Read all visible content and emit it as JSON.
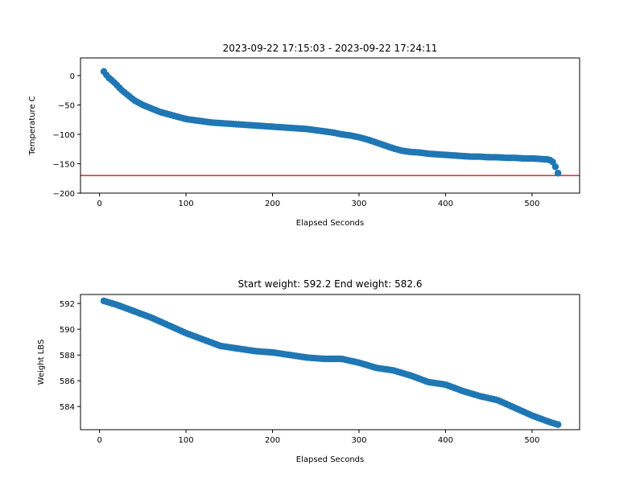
{
  "chart_data": [
    {
      "type": "scatter",
      "title": "2023-09-22 17:15:03 - 2023-09-22 17:24:11",
      "xlabel": "Elapsed Seconds",
      "ylabel": "Temperature C",
      "xlim": [
        -22,
        555
      ],
      "ylim": [
        -200,
        30
      ],
      "xticks": [
        0,
        100,
        200,
        300,
        400,
        500
      ],
      "yticks": [
        0,
        -50,
        -100,
        -150,
        -200
      ],
      "grid": false,
      "point_color": "#1f77b4",
      "reference_line": {
        "y": -170,
        "color": "#d62728"
      },
      "keyframes": [
        [
          5,
          7
        ],
        [
          10,
          -3
        ],
        [
          15,
          -9
        ],
        [
          20,
          -16
        ],
        [
          25,
          -24
        ],
        [
          30,
          -30
        ],
        [
          35,
          -36
        ],
        [
          40,
          -42
        ],
        [
          50,
          -50
        ],
        [
          60,
          -56
        ],
        [
          70,
          -62
        ],
        [
          80,
          -66
        ],
        [
          90,
          -70
        ],
        [
          100,
          -74
        ],
        [
          110,
          -76
        ],
        [
          120,
          -78
        ],
        [
          130,
          -80
        ],
        [
          140,
          -81
        ],
        [
          150,
          -82
        ],
        [
          160,
          -83
        ],
        [
          170,
          -84
        ],
        [
          180,
          -85
        ],
        [
          190,
          -86
        ],
        [
          200,
          -87
        ],
        [
          210,
          -88
        ],
        [
          220,
          -89
        ],
        [
          230,
          -90
        ],
        [
          240,
          -91
        ],
        [
          250,
          -93
        ],
        [
          260,
          -95
        ],
        [
          270,
          -97
        ],
        [
          280,
          -100
        ],
        [
          290,
          -102
        ],
        [
          300,
          -105
        ],
        [
          310,
          -109
        ],
        [
          320,
          -114
        ],
        [
          330,
          -119
        ],
        [
          340,
          -124
        ],
        [
          350,
          -128
        ],
        [
          360,
          -130
        ],
        [
          370,
          -131
        ],
        [
          380,
          -133
        ],
        [
          390,
          -134
        ],
        [
          400,
          -135
        ],
        [
          410,
          -136
        ],
        [
          420,
          -137
        ],
        [
          430,
          -138
        ],
        [
          440,
          -138
        ],
        [
          450,
          -139
        ],
        [
          460,
          -139
        ],
        [
          470,
          -140
        ],
        [
          480,
          -140
        ],
        [
          490,
          -141
        ],
        [
          500,
          -141
        ],
        [
          510,
          -142
        ],
        [
          520,
          -143
        ],
        [
          525,
          -148
        ],
        [
          530,
          -166
        ]
      ]
    },
    {
      "type": "scatter",
      "title": "Start weight: 592.2 End weight: 582.6",
      "xlabel": "Elapsed Seconds",
      "ylabel": "Weight LBS",
      "xlim": [
        -22,
        555
      ],
      "ylim": [
        582.2,
        592.7
      ],
      "xticks": [
        0,
        100,
        200,
        300,
        400,
        500
      ],
      "yticks": [
        584,
        586,
        588,
        590,
        592
      ],
      "grid": false,
      "point_color": "#1f77b4",
      "keyframes": [
        [
          5,
          592.2
        ],
        [
          20,
          591.9
        ],
        [
          40,
          591.4
        ],
        [
          60,
          590.9
        ],
        [
          80,
          590.3
        ],
        [
          100,
          589.7
        ],
        [
          120,
          589.2
        ],
        [
          140,
          588.7
        ],
        [
          160,
          588.5
        ],
        [
          180,
          588.3
        ],
        [
          200,
          588.2
        ],
        [
          220,
          588.0
        ],
        [
          240,
          587.8
        ],
        [
          260,
          587.7
        ],
        [
          280,
          587.7
        ],
        [
          300,
          587.4
        ],
        [
          320,
          587.0
        ],
        [
          340,
          586.8
        ],
        [
          360,
          586.4
        ],
        [
          380,
          585.9
        ],
        [
          400,
          585.7
        ],
        [
          420,
          585.2
        ],
        [
          440,
          584.8
        ],
        [
          460,
          584.5
        ],
        [
          480,
          583.9
        ],
        [
          500,
          583.3
        ],
        [
          520,
          582.8
        ],
        [
          530,
          582.6
        ]
      ]
    }
  ]
}
